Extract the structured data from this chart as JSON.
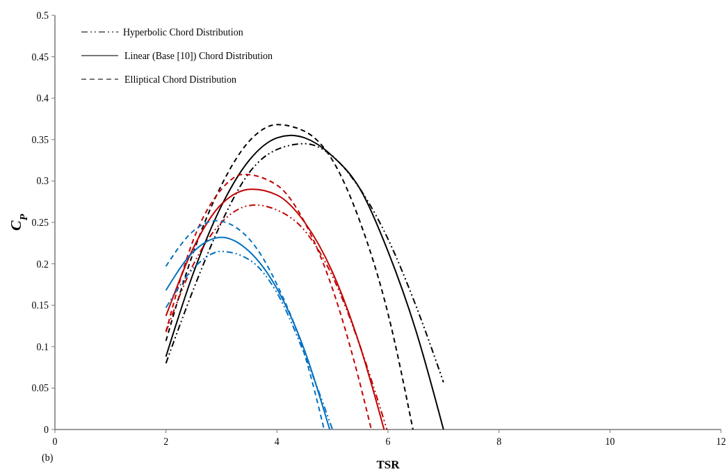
{
  "chart_data": {
    "type": "line",
    "xlabel": "TSR",
    "ylabel": "C$_{P}$",
    "xlim": [
      0,
      12
    ],
    "xticks": [
      0,
      2,
      4,
      6,
      8,
      10,
      12
    ],
    "ylim": [
      0,
      0.5
    ],
    "yticks": [
      0,
      0.05,
      0.1,
      0.15,
      0.2,
      0.25,
      0.3,
      0.35,
      0.4,
      0.45,
      0.5
    ],
    "grid": false,
    "annotations": [
      "Hyperbolic Chord Distribution",
      "Linear (Base [10]) Chord Distribution",
      "Elliptical Chord Distribution",
      "(b)"
    ],
    "series": [
      {
        "color": "#000000",
        "line_style": "dotted",
        "x": [
          2,
          2.5,
          3,
          3.5,
          4,
          4.5,
          5,
          5.5,
          6,
          6.5,
          7
        ],
        "values": [
          0.08,
          0.17,
          0.25,
          0.31,
          0.338,
          0.345,
          0.33,
          0.29,
          0.23,
          0.15,
          0.057
        ]
      },
      {
        "color": "#000000",
        "line_style": "solid",
        "x": [
          2,
          2.5,
          3,
          3.5,
          4,
          4.25,
          4.5,
          5,
          5.5,
          6,
          6.5,
          7
        ],
        "values": [
          0.088,
          0.19,
          0.27,
          0.325,
          0.352,
          0.355,
          0.352,
          0.33,
          0.29,
          0.215,
          0.12,
          0
        ]
      },
      {
        "color": "#000000",
        "line_style": "dashed",
        "x": [
          2,
          2.5,
          3,
          3.5,
          4,
          4.5,
          5,
          5.5,
          6,
          6.45
        ],
        "values": [
          0.107,
          0.215,
          0.295,
          0.348,
          0.368,
          0.36,
          0.325,
          0.25,
          0.14,
          0
        ]
      },
      {
        "color": "#c00000",
        "line_style": "dotted",
        "x": [
          2,
          2.5,
          3,
          3.6,
          4,
          4.5,
          5,
          5.5,
          5.98
        ],
        "values": [
          0.118,
          0.2,
          0.25,
          0.271,
          0.265,
          0.24,
          0.185,
          0.1,
          0
        ]
      },
      {
        "color": "#c00000",
        "line_style": "solid",
        "x": [
          2,
          2.5,
          3,
          3.55,
          4,
          4.5,
          5,
          5.5,
          5.93
        ],
        "values": [
          0.137,
          0.22,
          0.272,
          0.29,
          0.283,
          0.25,
          0.19,
          0.1,
          0
        ]
      },
      {
        "color": "#c00000",
        "line_style": "dashed",
        "x": [
          2,
          2.5,
          3,
          3.4,
          4,
          4.5,
          5,
          5.4,
          5.7
        ],
        "values": [
          0.118,
          0.23,
          0.29,
          0.308,
          0.295,
          0.25,
          0.17,
          0.08,
          0
        ]
      },
      {
        "color": "#0070c0",
        "line_style": "dotted",
        "x": [
          2,
          2.5,
          3,
          3.5,
          4,
          4.5,
          5
        ],
        "values": [
          0.147,
          0.195,
          0.215,
          0.205,
          0.165,
          0.09,
          0
        ]
      },
      {
        "color": "#0070c0",
        "line_style": "solid",
        "x": [
          2,
          2.5,
          3,
          3.5,
          4,
          4.5,
          4.95
        ],
        "values": [
          0.168,
          0.215,
          0.232,
          0.215,
          0.17,
          0.095,
          0
        ]
      },
      {
        "color": "#0070c0",
        "line_style": "dashed",
        "x": [
          2,
          2.5,
          2.9,
          3.5,
          4,
          4.5,
          4.85
        ],
        "values": [
          0.197,
          0.24,
          0.252,
          0.23,
          0.175,
          0.09,
          0
        ]
      }
    ]
  }
}
